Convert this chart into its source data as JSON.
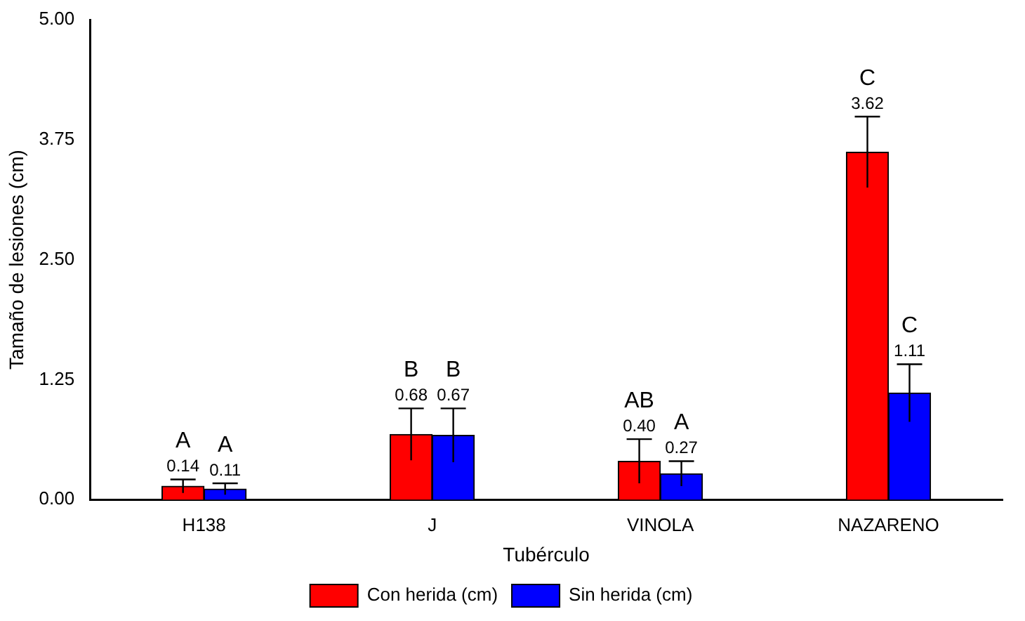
{
  "chart_data": {
    "type": "bar",
    "xlabel": "Tubérculo",
    "ylabel": "Tamaño de lesiones (cm)",
    "categories": [
      "H138",
      "J",
      "VINOLA",
      "NAZARENO"
    ],
    "series": [
      {
        "name": "Con herida (cm)",
        "color": "#ff0000",
        "values": [
          0.14,
          0.68,
          0.4,
          3.62
        ],
        "errors": [
          0.07,
          0.27,
          0.23,
          0.37
        ],
        "value_labels": [
          "0.14",
          "0.68",
          "0.40",
          "3.62"
        ]
      },
      {
        "name": "Sin herida (cm)",
        "color": "#0000ff",
        "values": [
          0.11,
          0.67,
          0.27,
          1.11
        ],
        "errors": [
          0.06,
          0.28,
          0.13,
          0.3
        ],
        "value_labels": [
          "0.11",
          "0.67",
          "0.27",
          "1.11"
        ]
      }
    ],
    "ylim": [
      0,
      5
    ],
    "yticks": [
      {
        "value": 0,
        "label": "0.00"
      },
      {
        "value": 1.25,
        "label": "1.25"
      },
      {
        "value": 2.5,
        "label": "2.50"
      },
      {
        "value": 3.75,
        "label": "3.75"
      },
      {
        "value": 5,
        "label": "5.00"
      }
    ],
    "annotations": [
      "A",
      "A",
      "B",
      "B",
      "AB",
      "A",
      "C",
      "C"
    ],
    "grid": false,
    "legend": "bottom"
  }
}
